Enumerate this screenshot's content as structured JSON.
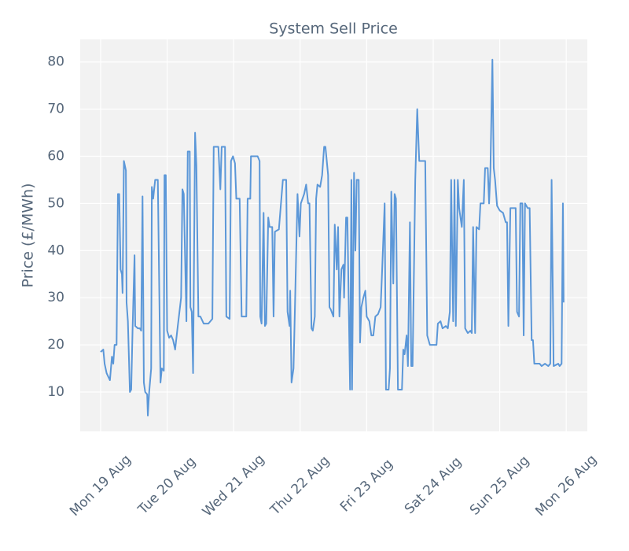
{
  "chart_data": {
    "type": "line",
    "title": "System Sell Price",
    "ylabel": "Price (£/MWh)",
    "color": "#5b97d8",
    "grid": true,
    "xlim": [
      -0.307,
      7.317
    ],
    "ylim": [
      1.65,
      84.8
    ],
    "xticks": [
      {
        "value": 0,
        "label": "Mon 19 Aug"
      },
      {
        "value": 1,
        "label": "Tue 20 Aug"
      },
      {
        "value": 2,
        "label": "Wed 21 Aug"
      },
      {
        "value": 3,
        "label": "Thu 22 Aug"
      },
      {
        "value": 4,
        "label": "Fri 23 Aug"
      },
      {
        "value": 5,
        "label": "Sat 24 Aug"
      },
      {
        "value": 6,
        "label": "Sun 25 Aug"
      },
      {
        "value": 7,
        "label": "Mon 26 Aug"
      }
    ],
    "yticks": [
      10,
      20,
      30,
      40,
      50,
      60,
      70,
      80
    ],
    "x": [
      0,
      0.04,
      0.06,
      0.09,
      0.14,
      0.17,
      0.19,
      0.21,
      0.24,
      0.26,
      0.28,
      0.3,
      0.32,
      0.33,
      0.35,
      0.38,
      0.39,
      0.41,
      0.44,
      0.46,
      0.48,
      0.51,
      0.52,
      0.56,
      0.59,
      0.61,
      0.63,
      0.65,
      0.67,
      0.7,
      0.71,
      0.73,
      0.76,
      0.77,
      0.79,
      0.82,
      0.86,
      0.9,
      0.92,
      0.95,
      0.96,
      0.98,
      1.0,
      1.03,
      1.06,
      1.09,
      1.12,
      1.16,
      1.21,
      1.23,
      1.25,
      1.29,
      1.31,
      1.34,
      1.35,
      1.37,
      1.39,
      1.42,
      1.44,
      1.47,
      1.5,
      1.55,
      1.62,
      1.68,
      1.7,
      1.77,
      1.8,
      1.82,
      1.87,
      1.89,
      1.94,
      1.96,
      1.99,
      2.02,
      2.04,
      2.09,
      2.12,
      2.19,
      2.21,
      2.25,
      2.26,
      2.36,
      2.39,
      2.4,
      2.42,
      2.45,
      2.47,
      2.49,
      2.52,
      2.54,
      2.58,
      2.6,
      2.62,
      2.68,
      2.74,
      2.79,
      2.81,
      2.84,
      2.85,
      2.87,
      2.9,
      2.92,
      2.96,
      2.99,
      3.01,
      3.06,
      3.09,
      3.12,
      3.14,
      3.17,
      3.19,
      3.22,
      3.24,
      3.26,
      3.3,
      3.33,
      3.36,
      3.38,
      3.42,
      3.44,
      3.46,
      3.5,
      3.52,
      3.55,
      3.57,
      3.59,
      3.62,
      3.65,
      3.66,
      3.69,
      3.71,
      3.75,
      3.77,
      3.78,
      3.81,
      3.83,
      3.85,
      3.88,
      3.9,
      3.92,
      3.95,
      3.98,
      4.0,
      4.04,
      4.07,
      4.1,
      4.13,
      4.17,
      4.21,
      4.23,
      4.27,
      4.29,
      4.33,
      4.35,
      4.37,
      4.4,
      4.42,
      4.44,
      4.47,
      4.53,
      4.55,
      4.57,
      4.6,
      4.62,
      4.65,
      4.67,
      4.69,
      4.73,
      4.76,
      4.79,
      4.88,
      4.91,
      4.95,
      4.99,
      5.05,
      5.07,
      5.11,
      5.14,
      5.19,
      5.22,
      5.25,
      5.27,
      5.3,
      5.32,
      5.34,
      5.37,
      5.39,
      5.43,
      5.46,
      5.48,
      5.52,
      5.56,
      5.58,
      5.6,
      5.63,
      5.65,
      5.69,
      5.71,
      5.76,
      5.78,
      5.82,
      5.84,
      5.86,
      5.89,
      5.91,
      5.93,
      5.96,
      6.0,
      6.05,
      6.09,
      6.11,
      6.13,
      6.16,
      6.24,
      6.26,
      6.29,
      6.31,
      6.34,
      6.36,
      6.38,
      6.42,
      6.45,
      6.48,
      6.5,
      6.52,
      6.6,
      6.63,
      6.68,
      6.73,
      6.76,
      6.78,
      6.81,
      6.88,
      6.9,
      6.93,
      6.95,
      6.96
    ],
    "values": [
      18.5,
      19,
      16,
      14,
      12.5,
      17.5,
      16,
      20,
      20,
      52,
      52,
      36,
      35,
      31,
      59,
      57,
      29,
      25,
      10,
      10.5,
      23,
      39,
      24,
      23.5,
      23.5,
      23,
      51.5,
      12,
      10,
      9.5,
      5,
      10,
      15,
      53.5,
      51,
      55,
      55,
      12,
      15,
      14.5,
      56,
      56,
      23,
      21.5,
      22,
      21,
      19,
      24,
      30,
      53,
      52,
      25,
      61,
      61,
      28,
      27,
      14,
      65,
      58,
      26,
      26,
      24.5,
      24.5,
      25.5,
      62,
      62,
      53,
      62,
      62,
      26,
      25.5,
      59,
      60,
      58.5,
      51,
      51,
      26,
      26,
      51,
      51,
      60,
      60,
      59,
      26,
      24.5,
      48,
      24,
      24.5,
      47,
      45,
      45,
      26,
      44,
      44.5,
      55,
      55,
      27,
      24,
      31.5,
      12,
      15,
      27,
      52,
      43,
      50,
      52,
      54,
      50,
      50,
      23.5,
      23,
      26,
      51,
      54,
      53.5,
      56,
      62,
      62,
      56,
      28,
      27.5,
      26,
      45.5,
      36,
      45,
      26,
      36,
      37,
      30,
      47,
      47,
      10.5,
      55,
      10.5,
      56.5,
      40,
      55,
      55,
      20.5,
      28,
      30,
      31.5,
      26,
      25,
      22,
      22,
      26,
      26.5,
      28,
      35,
      50,
      10.5,
      10.5,
      15,
      52.5,
      33,
      52,
      51,
      10.5,
      10.5,
      19,
      18,
      22,
      15.5,
      46,
      15.5,
      15.5,
      55,
      70,
      59,
      59,
      22,
      20,
      20,
      20,
      24.5,
      25,
      23.5,
      24,
      23.5,
      27,
      55,
      25,
      55,
      24,
      55,
      49,
      45,
      55,
      23.5,
      22.5,
      23,
      22.5,
      45,
      22.5,
      45,
      44.5,
      50,
      50,
      57.5,
      57.5,
      50,
      57,
      80.5,
      57.5,
      55,
      49.5,
      48.5,
      48,
      46,
      46,
      24,
      49,
      49,
      27,
      26,
      50,
      50,
      22,
      50,
      49,
      49,
      21,
      21,
      16,
      16,
      15.5,
      16,
      15.5,
      16,
      55,
      15.5,
      16,
      15.5,
      16,
      50,
      29
    ]
  }
}
